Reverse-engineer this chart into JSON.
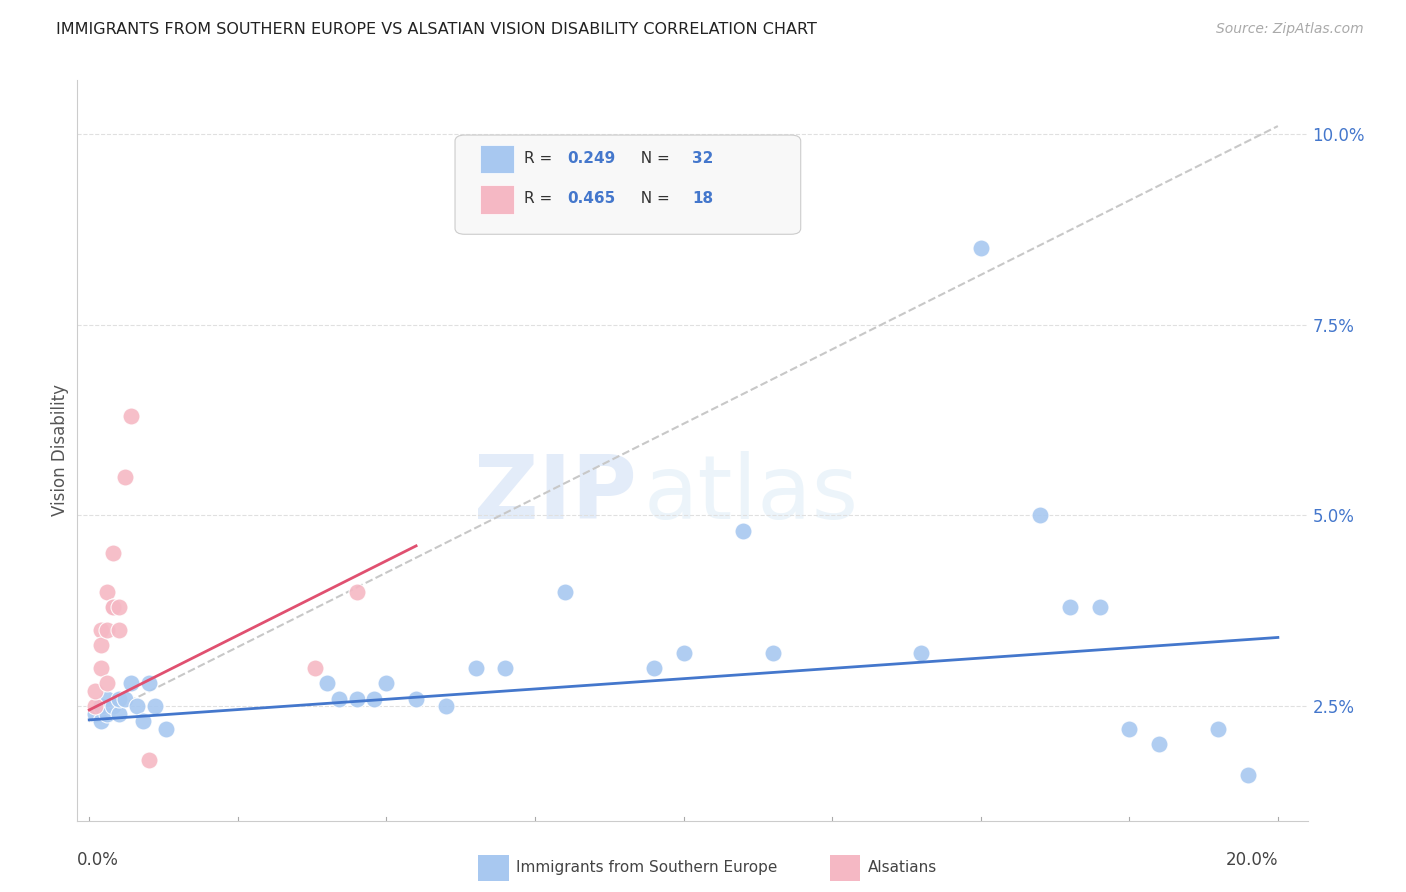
{
  "title": "IMMIGRANTS FROM SOUTHERN EUROPE VS ALSATIAN VISION DISABILITY CORRELATION CHART",
  "source": "Source: ZipAtlas.com",
  "ylabel": "Vision Disability",
  "right_yticks": [
    "2.5%",
    "5.0%",
    "7.5%",
    "10.0%"
  ],
  "right_ytick_vals": [
    0.025,
    0.05,
    0.075,
    0.1
  ],
  "xlim": [
    -0.002,
    0.205
  ],
  "ylim": [
    0.01,
    0.107
  ],
  "blue_color": "#a8c8f0",
  "pink_color": "#f5b8c4",
  "blue_line_color": "#4477cc",
  "pink_line_color": "#e05070",
  "dashed_color": "#c8c8c8",
  "grid_color": "#e0e0e0",
  "watermark_zip": "ZIP",
  "watermark_atlas": "atlas",
  "blue_scatter": [
    [
      0.001,
      0.024
    ],
    [
      0.002,
      0.023
    ],
    [
      0.002,
      0.025
    ],
    [
      0.003,
      0.024
    ],
    [
      0.003,
      0.026
    ],
    [
      0.004,
      0.025
    ],
    [
      0.005,
      0.024
    ],
    [
      0.005,
      0.026
    ],
    [
      0.006,
      0.026
    ],
    [
      0.007,
      0.028
    ],
    [
      0.008,
      0.025
    ],
    [
      0.009,
      0.023
    ],
    [
      0.01,
      0.028
    ],
    [
      0.011,
      0.025
    ],
    [
      0.013,
      0.022
    ],
    [
      0.04,
      0.028
    ],
    [
      0.042,
      0.026
    ],
    [
      0.045,
      0.026
    ],
    [
      0.048,
      0.026
    ],
    [
      0.05,
      0.028
    ],
    [
      0.055,
      0.026
    ],
    [
      0.06,
      0.025
    ],
    [
      0.065,
      0.03
    ],
    [
      0.07,
      0.03
    ],
    [
      0.08,
      0.04
    ],
    [
      0.095,
      0.03
    ],
    [
      0.1,
      0.032
    ],
    [
      0.11,
      0.048
    ],
    [
      0.115,
      0.032
    ],
    [
      0.14,
      0.032
    ],
    [
      0.15,
      0.085
    ],
    [
      0.16,
      0.05
    ],
    [
      0.165,
      0.038
    ],
    [
      0.17,
      0.038
    ],
    [
      0.175,
      0.022
    ],
    [
      0.18,
      0.02
    ],
    [
      0.19,
      0.022
    ],
    [
      0.195,
      0.016
    ]
  ],
  "pink_scatter": [
    [
      0.001,
      0.025
    ],
    [
      0.001,
      0.027
    ],
    [
      0.002,
      0.03
    ],
    [
      0.002,
      0.035
    ],
    [
      0.002,
      0.033
    ],
    [
      0.003,
      0.035
    ],
    [
      0.003,
      0.028
    ],
    [
      0.003,
      0.04
    ],
    [
      0.004,
      0.045
    ],
    [
      0.004,
      0.038
    ],
    [
      0.004,
      0.038
    ],
    [
      0.005,
      0.038
    ],
    [
      0.005,
      0.035
    ],
    [
      0.006,
      0.055
    ],
    [
      0.007,
      0.063
    ],
    [
      0.038,
      0.03
    ],
    [
      0.045,
      0.04
    ],
    [
      0.01,
      0.018
    ]
  ],
  "blue_line_x": [
    0.0,
    0.2
  ],
  "blue_line_y": [
    0.0232,
    0.034
  ],
  "pink_line_x": [
    0.0,
    0.055
  ],
  "pink_line_y": [
    0.0245,
    0.046
  ],
  "dash_line_x": [
    0.0,
    0.2
  ],
  "dash_line_y": [
    0.023,
    0.101
  ]
}
